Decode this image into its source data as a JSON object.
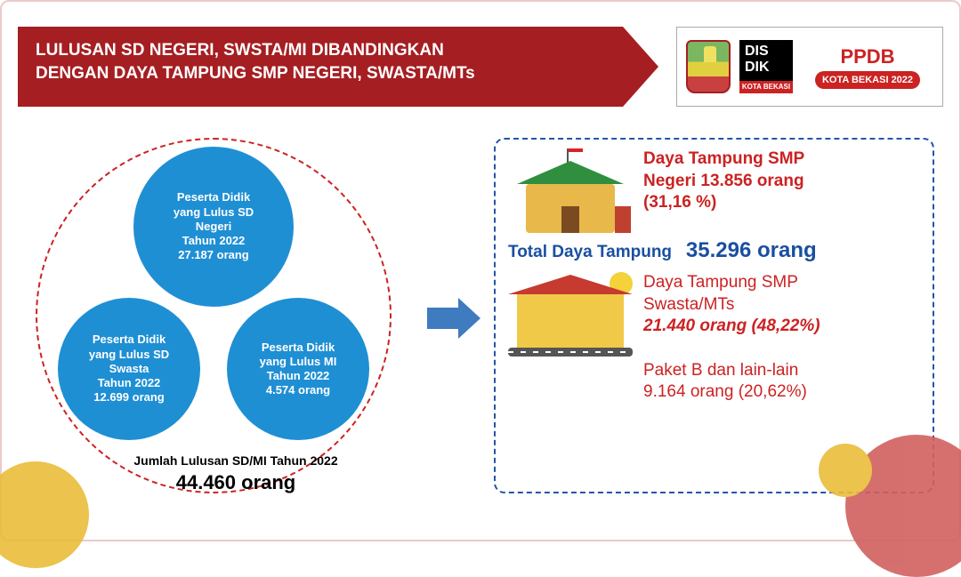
{
  "header": {
    "title": "LULUSAN SD NEGERI, SWSTA/MI DIBANDINGKAN\nDENGAN DAYA TAMPUNG SMP NEGERI, SWASTA/MTs",
    "banner_bg": "#a51e22",
    "banner_text_color": "#ffffff"
  },
  "brand": {
    "disdik_text_top": "DIS",
    "disdik_text_bottom": "DIK",
    "disdik_bar": "KOTA BEKASI",
    "ppdb_title": "PPDB",
    "ppdb_badge": "KOTA BEKASI 2022",
    "ppdb_color": "#c22222"
  },
  "venn": {
    "dash_color": "#c22222",
    "circles": [
      {
        "key": "top",
        "color": "#1f8fd4",
        "lines": [
          "Peserta Didik",
          "yang Lulus SD",
          "Negeri",
          "Tahun 2022",
          "27.187 orang"
        ]
      },
      {
        "key": "left",
        "color": "#1f8fd4",
        "lines": [
          "Peserta Didik",
          "yang Lulus SD",
          "Swasta",
          "Tahun 2022",
          "12.699 orang"
        ]
      },
      {
        "key": "right",
        "color": "#1f8fd4",
        "lines": [
          "Peserta Didik",
          "yang Lulus MI",
          "Tahun 2022",
          "4.574 orang"
        ]
      }
    ],
    "summary_label": "Jumlah Lulusan SD/MI Tahun 2022",
    "summary_value": "44.460 orang"
  },
  "arrow": {
    "color": "#3f7bbf"
  },
  "right_panel": {
    "border_color": "#2255aa",
    "smp_negeri": {
      "line1": "Daya Tampung SMP",
      "line2": "Negeri 13.856 orang",
      "line3": "(31,16 %)",
      "color": "#c22222"
    },
    "total": {
      "label": "Total Daya Tampung",
      "value": "35.296 orang",
      "color": "#1a4fa0"
    },
    "smp_swasta": {
      "line1": "Daya Tampung SMP",
      "line2": "Swasta/MTs",
      "line3": "21.440 orang (48,22%)",
      "color": "#c22222"
    },
    "paket_b": {
      "line1": "Paket B dan lain-lain",
      "line2": "9.164 orang (20,62%)",
      "color": "#c22222"
    }
  },
  "decor": {
    "blob_yellow": "#e9bd3a",
    "blob_coral": "#d1605f"
  }
}
